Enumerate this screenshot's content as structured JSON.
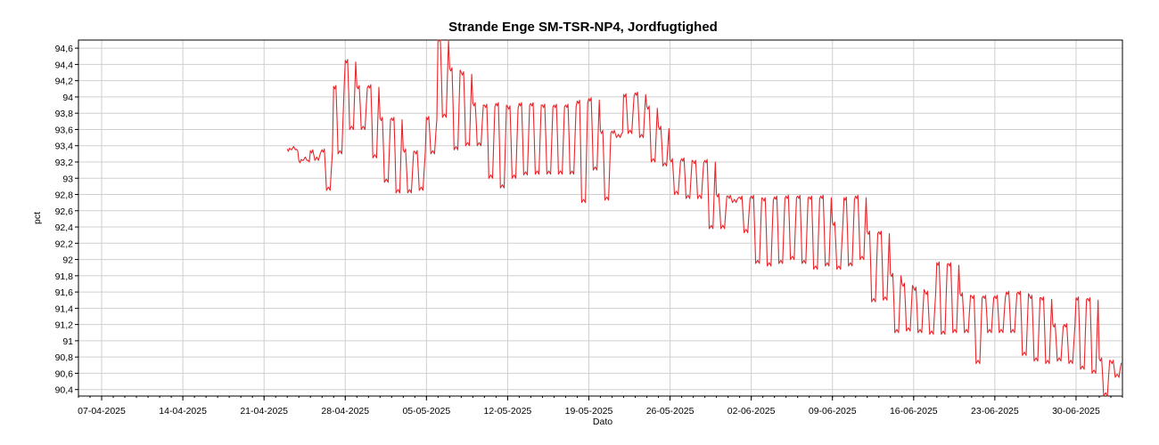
{
  "chart_data": {
    "type": "line",
    "title": "Strande Enge SM-TSR-NP4, Jordfugtighed",
    "xlabel": "Dato",
    "ylabel": "pct",
    "xlim": [
      "2025-04-05",
      "2025-07-04"
    ],
    "ylim": [
      90.32,
      94.7
    ],
    "grid": true,
    "legend": "none",
    "x_tick_labels": [
      "07-04-2025",
      "14-04-2025",
      "21-04-2025",
      "28-04-2025",
      "05-05-2025",
      "12-05-2025",
      "19-05-2025",
      "26-05-2025",
      "02-06-2025",
      "09-06-2025",
      "16-06-2025",
      "23-06-2025",
      "30-06-2025"
    ],
    "x_tick_dates": [
      "2025-04-07",
      "2025-04-14",
      "2025-04-21",
      "2025-04-28",
      "2025-05-05",
      "2025-05-12",
      "2025-05-19",
      "2025-05-26",
      "2025-06-02",
      "2025-06-09",
      "2025-06-16",
      "2025-06-23",
      "2025-06-30"
    ],
    "y_ticks": [
      90.4,
      90.6,
      90.8,
      91.0,
      91.2,
      91.4,
      91.6,
      91.8,
      92.0,
      92.2,
      92.4,
      92.6,
      92.8,
      93.0,
      93.2,
      93.4,
      93.6,
      93.8,
      94.0,
      94.2,
      94.4,
      94.6
    ],
    "y_tick_labels": [
      "90,4",
      "90,6",
      "90,8",
      "91",
      "91,2",
      "91,4",
      "91,6",
      "91,8",
      "92",
      "92,2",
      "92,4",
      "92,6",
      "92,8",
      "93",
      "93,2",
      "93,4",
      "93,6",
      "93,8",
      "94",
      "94,2",
      "94,4",
      "94,6"
    ],
    "series_color": "#e8262b",
    "series": [
      {
        "x": [
          "2025-04-23",
          "2025-04-24",
          "2025-04-25",
          "2025-04-26",
          "2025-04-27",
          "2025-04-28",
          "2025-04-29",
          "2025-04-30",
          "2025-05-01",
          "2025-05-02",
          "2025-05-03",
          "2025-05-04",
          "2025-05-05",
          "2025-05-06",
          "2025-05-07",
          "2025-05-08",
          "2025-05-09",
          "2025-05-10",
          "2025-05-11",
          "2025-05-12",
          "2025-05-13",
          "2025-05-14",
          "2025-05-15",
          "2025-05-16",
          "2025-05-17",
          "2025-05-18",
          "2025-05-19",
          "2025-05-20",
          "2025-05-21",
          "2025-05-22",
          "2025-05-23",
          "2025-05-24",
          "2025-05-25",
          "2025-05-26",
          "2025-05-27",
          "2025-05-28",
          "2025-05-29",
          "2025-05-30",
          "2025-05-31",
          "2025-06-01",
          "2025-06-02",
          "2025-06-03",
          "2025-06-04",
          "2025-06-05",
          "2025-06-06",
          "2025-06-07",
          "2025-06-08",
          "2025-06-09",
          "2025-06-10",
          "2025-06-11",
          "2025-06-12",
          "2025-06-13",
          "2025-06-14",
          "2025-06-15",
          "2025-06-16",
          "2025-06-17",
          "2025-06-18",
          "2025-06-19",
          "2025-06-20",
          "2025-06-21",
          "2025-06-22",
          "2025-06-23",
          "2025-06-24",
          "2025-06-25",
          "2025-06-26",
          "2025-06-27",
          "2025-06-28",
          "2025-06-29",
          "2025-06-30",
          "2025-07-01",
          "2025-07-02",
          "2025-07-03"
        ],
        "high": [
          93.36,
          93.22,
          93.34,
          93.35,
          94.13,
          94.45,
          94.13,
          94.14,
          93.74,
          93.74,
          93.35,
          93.33,
          93.75,
          94.72,
          94.35,
          94.3,
          93.92,
          93.9,
          93.92,
          93.88,
          93.92,
          93.92,
          93.9,
          93.9,
          93.9,
          93.95,
          93.98,
          93.58,
          93.58,
          94.03,
          94.05,
          93.88,
          93.63,
          93.23,
          93.24,
          93.21,
          93.22,
          92.8,
          92.78,
          92.77,
          92.78,
          92.75,
          92.77,
          92.78,
          92.78,
          92.77,
          92.78,
          92.45,
          92.76,
          92.78,
          92.34,
          92.34,
          91.82,
          91.7,
          91.65,
          91.6,
          91.96,
          91.95,
          91.58,
          91.55,
          91.55,
          91.55,
          91.6,
          91.6,
          91.55,
          91.53,
          91.2,
          91.2,
          91.53,
          91.52,
          90.78,
          90.75
        ],
        "low": [
          93.35,
          93.22,
          93.22,
          92.85,
          93.3,
          93.6,
          93.6,
          93.25,
          92.95,
          92.82,
          92.82,
          92.85,
          93.3,
          93.75,
          93.35,
          93.4,
          93.4,
          93.0,
          92.88,
          93.0,
          93.04,
          93.05,
          93.05,
          93.05,
          93.05,
          92.7,
          93.1,
          92.73,
          93.5,
          93.55,
          93.5,
          93.2,
          93.15,
          92.8,
          92.75,
          92.75,
          92.38,
          92.38,
          92.7,
          92.33,
          91.95,
          91.92,
          91.95,
          92.0,
          91.95,
          91.88,
          91.92,
          91.88,
          91.92,
          92.0,
          91.48,
          91.5,
          91.1,
          91.12,
          91.1,
          91.08,
          91.08,
          91.1,
          91.1,
          90.72,
          91.1,
          91.1,
          91.1,
          90.82,
          90.75,
          90.72,
          90.75,
          90.72,
          90.65,
          90.6,
          90.32,
          90.55
        ]
      }
    ]
  }
}
